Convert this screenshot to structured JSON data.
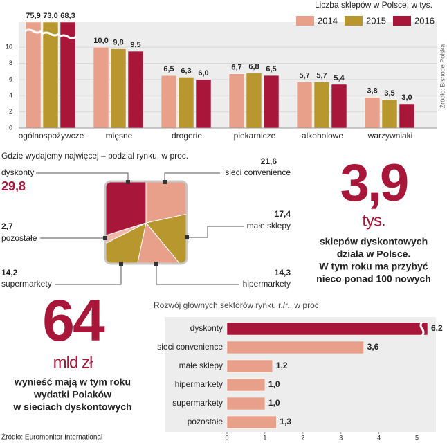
{
  "chart_data": [
    {
      "type": "bar",
      "title": "Liczba sklepów w Polsce, w tys.",
      "source": "Źródło: Bisnode Polska",
      "categories": [
        "ogólnospożywcze",
        "mięsne",
        "drogerie",
        "piekarnicze",
        "alkoholowe",
        "warzywniaki"
      ],
      "series": [
        {
          "name": "2014",
          "color": "#e8a08a",
          "values": [
            75.9,
            10.0,
            6.5,
            6.7,
            5.7,
            3.8
          ],
          "value_labels": [
            "75,9",
            "10,0",
            "6,5",
            "6,7",
            "5,7",
            "3,8"
          ]
        },
        {
          "name": "2015",
          "color": "#b8972e",
          "values": [
            73.0,
            9.8,
            6.3,
            6.8,
            5.7,
            3.5
          ],
          "value_labels": [
            "73,0",
            "9,8",
            "6,3",
            "6,8",
            "5,7",
            "3,5"
          ]
        },
        {
          "name": "2016",
          "color": "#a8173a",
          "values": [
            68.3,
            9.5,
            6.0,
            6.5,
            5.4,
            3.0
          ],
          "value_labels": [
            "68,3",
            "9,5",
            "6,0",
            "6,5",
            "5,4",
            "3,0"
          ]
        }
      ],
      "ylim": [
        0,
        12.5
      ],
      "yticks": [
        0,
        2,
        4,
        6,
        8,
        10
      ],
      "grid": true
    },
    {
      "type": "pie",
      "title": "Gdzie wydajemy najwięcej – podział rynku, w proc.",
      "categories": [
        "sieci convenience",
        "małe sklepy",
        "hipermarkety",
        "supermarkety",
        "pozostałe",
        "dyskonty"
      ],
      "values": [
        21.6,
        17.4,
        14.3,
        14.2,
        2.7,
        29.8
      ],
      "value_labels": [
        "21,6",
        "17,4",
        "14,3",
        "14,2",
        "2,7",
        "29,8"
      ],
      "colors": [
        "#e8a08a",
        "#b8972e",
        "#e8a08a",
        "#b8972e",
        "#f0b9a8",
        "#a8173a"
      ]
    },
    {
      "type": "hbar",
      "title": "Rozwój głównych sektorów rynku r./r., w proc.",
      "categories": [
        "dyskonty",
        "sieci convenience",
        "małe sklepy",
        "hipermarkety",
        "supermarkety",
        "pozostałe"
      ],
      "values": [
        6.2,
        3.6,
        1.2,
        1.0,
        1.0,
        1.3
      ],
      "value_labels": [
        "6,2",
        "3,6",
        "1,2",
        "1,0",
        "1,0",
        "1,3"
      ],
      "colors": [
        "#a8173a",
        "#e8a08a",
        "#e8a08a",
        "#e8a08a",
        "#e8a08a",
        "#e8a08a"
      ],
      "xlim": [
        0,
        5.5
      ],
      "xticks": [
        0,
        1,
        2,
        3,
        4,
        5
      ]
    }
  ],
  "highlights": [
    {
      "number": "3,9",
      "unit": "tys.",
      "text": [
        "sklepów dyskontowych",
        "działa w Polsce.",
        "W tym roku ma przybyć",
        "nieco ponad 100 nowych"
      ]
    },
    {
      "number": "64",
      "unit": "mld zł",
      "text": [
        "wynieść mają w tym roku",
        "wydatki Polaków",
        "w sieciach dyskontowych"
      ]
    }
  ],
  "source": "Źródło: Euromonitor International"
}
